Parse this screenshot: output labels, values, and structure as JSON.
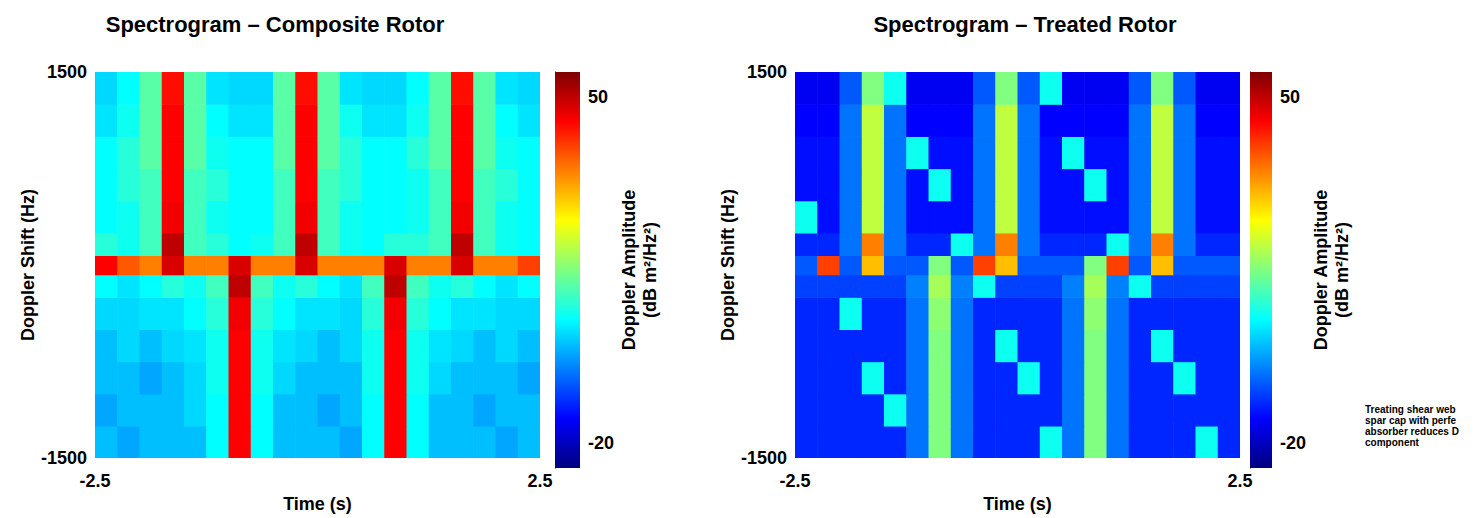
{
  "chart_data": [
    {
      "type": "heatmap",
      "title": "Spectrogram – Composite Rotor",
      "x_label": "Time (s)",
      "y_label": "Doppler Shift (Hz)",
      "xlim": [
        -2.5,
        2.5
      ],
      "xticks": [
        -2.5,
        2.5
      ],
      "ylim": [
        -1500,
        1500
      ],
      "yticks": [
        -1500,
        1500
      ],
      "time_edges": [
        -2.5,
        -2.25,
        -2.0,
        -1.75,
        -1.5,
        -1.25,
        -1.0,
        -0.75,
        -0.5,
        -0.25,
        0.0,
        0.25,
        0.5,
        0.75,
        1.0,
        1.25,
        1.5,
        1.75,
        2.0,
        2.25,
        2.5
      ],
      "doppler_edges": [
        -1500,
        -1250,
        -1000,
        -750,
        -500,
        -250,
        -75,
        75,
        250,
        500,
        750,
        1000,
        1250,
        1500
      ],
      "amplitude": [
        [
          0,
          -2,
          0,
          0,
          0,
          5,
          45,
          5,
          0,
          0,
          0,
          -2,
          5,
          45,
          5,
          0,
          0,
          0,
          -2,
          0
        ],
        [
          -2,
          0,
          0,
          0,
          2,
          5,
          45,
          5,
          0,
          0,
          -2,
          0,
          5,
          45,
          5,
          0,
          0,
          -2,
          0,
          0
        ],
        [
          0,
          0,
          -2,
          0,
          2,
          6,
          45,
          6,
          2,
          0,
          0,
          0,
          6,
          45,
          6,
          2,
          0,
          0,
          0,
          -2
        ],
        [
          0,
          2,
          0,
          2,
          3,
          6,
          45,
          6,
          3,
          2,
          0,
          2,
          6,
          45,
          6,
          3,
          2,
          0,
          2,
          0
        ],
        [
          2,
          2,
          3,
          3,
          5,
          8,
          46,
          8,
          5,
          3,
          3,
          2,
          8,
          46,
          8,
          5,
          3,
          3,
          2,
          2
        ],
        [
          5,
          3,
          5,
          8,
          6,
          10,
          50,
          10,
          6,
          8,
          5,
          3,
          10,
          50,
          10,
          6,
          8,
          5,
          3,
          5
        ],
        [
          45,
          38,
          35,
          48,
          35,
          35,
          48,
          35,
          35,
          48,
          35,
          35,
          35,
          48,
          35,
          35,
          48,
          35,
          35,
          40
        ],
        [
          8,
          6,
          10,
          50,
          10,
          8,
          5,
          6,
          10,
          50,
          10,
          6,
          5,
          8,
          8,
          10,
          50,
          10,
          6,
          5
        ],
        [
          5,
          6,
          10,
          46,
          10,
          6,
          5,
          5,
          10,
          46,
          10,
          6,
          5,
          5,
          6,
          10,
          46,
          10,
          6,
          5
        ],
        [
          5,
          8,
          10,
          45,
          10,
          8,
          5,
          5,
          10,
          45,
          10,
          8,
          5,
          5,
          6,
          10,
          45,
          10,
          8,
          5
        ],
        [
          5,
          8,
          12,
          45,
          12,
          6,
          5,
          5,
          12,
          45,
          12,
          8,
          5,
          5,
          8,
          12,
          45,
          12,
          6,
          5
        ],
        [
          3,
          6,
          12,
          45,
          12,
          5,
          3,
          3,
          12,
          45,
          12,
          6,
          3,
          3,
          6,
          12,
          45,
          12,
          5,
          3
        ],
        [
          2,
          5,
          12,
          44,
          12,
          3,
          2,
          2,
          12,
          44,
          12,
          3,
          2,
          2,
          5,
          12,
          44,
          12,
          3,
          2
        ]
      ],
      "colorbar": {
        "label": "Doppler Amplitude (dB m²/Hz²)",
        "range": [
          -25,
          55
        ],
        "ticks": [
          -20,
          50
        ]
      }
    },
    {
      "type": "heatmap",
      "title": "Spectrogram – Treated Rotor",
      "x_label": "Time (s)",
      "y_label": "Doppler Shift (Hz)",
      "xlim": [
        -2.5,
        2.5
      ],
      "xticks": [
        -2.5,
        2.5
      ],
      "ylim": [
        -1500,
        1500
      ],
      "yticks": [
        -1500,
        1500
      ],
      "time_edges": [
        -2.5,
        -2.25,
        -2.0,
        -1.75,
        -1.5,
        -1.25,
        -1.0,
        -0.75,
        -0.5,
        -0.25,
        0.0,
        0.25,
        0.5,
        0.75,
        1.0,
        1.25,
        1.5,
        1.75,
        2.0,
        2.25,
        2.5
      ],
      "doppler_edges": [
        -1500,
        -1250,
        -1000,
        -750,
        -500,
        -250,
        -75,
        75,
        250,
        500,
        750,
        1000,
        1250,
        1500
      ],
      "amplitude": [
        [
          -12,
          -12,
          -12,
          -12,
          -12,
          -6,
          15,
          -6,
          -12,
          -12,
          -12,
          6,
          -6,
          15,
          -6,
          -12,
          -12,
          -12,
          6,
          -12
        ],
        [
          -12,
          -12,
          -12,
          -12,
          6,
          -6,
          15,
          -6,
          -12,
          -12,
          -12,
          -12,
          -6,
          15,
          -6,
          -12,
          -12,
          -12,
          -12,
          -12
        ],
        [
          -12,
          -12,
          -12,
          6,
          -12,
          -6,
          15,
          -6,
          -12,
          -12,
          6,
          -12,
          -6,
          15,
          -6,
          -12,
          -12,
          6,
          -12,
          -12
        ],
        [
          -12,
          -12,
          -12,
          -12,
          -12,
          -6,
          15,
          -6,
          -12,
          6,
          -12,
          -12,
          -6,
          15,
          -6,
          -12,
          6,
          -12,
          -12,
          -12
        ],
        [
          -12,
          -12,
          6,
          -12,
          -12,
          -6,
          16,
          -6,
          -12,
          -12,
          -12,
          -12,
          -6,
          16,
          -6,
          -12,
          -12,
          -12,
          -12,
          -12
        ],
        [
          -10,
          -10,
          -10,
          -10,
          -10,
          -5,
          18,
          -5,
          6,
          -10,
          -10,
          -10,
          -5,
          18,
          -5,
          6,
          -10,
          -10,
          -10,
          -10
        ],
        [
          -8,
          40,
          -8,
          30,
          -8,
          -8,
          15,
          -8,
          40,
          30,
          -8,
          -8,
          -8,
          15,
          40,
          -8,
          30,
          -8,
          -8,
          -8
        ],
        [
          -12,
          -12,
          -6,
          35,
          -6,
          -12,
          -12,
          6,
          -6,
          35,
          -6,
          -12,
          -12,
          -12,
          6,
          -6,
          35,
          -6,
          -12,
          -12
        ],
        [
          6,
          -14,
          -6,
          20,
          -6,
          -14,
          -14,
          -14,
          -6,
          20,
          -6,
          -14,
          -14,
          -14,
          -14,
          -6,
          20,
          -6,
          -14,
          -14
        ],
        [
          -14,
          -14,
          -6,
          20,
          -6,
          -14,
          6,
          -14,
          -6,
          20,
          -6,
          -14,
          -14,
          6,
          -14,
          -6,
          20,
          -6,
          -14,
          -14
        ],
        [
          -14,
          -14,
          -6,
          20,
          -6,
          6,
          -14,
          -14,
          -6,
          20,
          -6,
          -14,
          6,
          -14,
          -14,
          -6,
          20,
          -6,
          -14,
          -14
        ],
        [
          -15,
          -15,
          -6,
          20,
          -6,
          -15,
          -15,
          -15,
          -6,
          20,
          -6,
          -15,
          -15,
          -15,
          -15,
          -6,
          20,
          -6,
          -15,
          -15
        ],
        [
          -16,
          -16,
          -8,
          15,
          6,
          -16,
          -16,
          -16,
          -8,
          15,
          -8,
          6,
          -16,
          -16,
          -16,
          -8,
          15,
          -8,
          -16,
          -16
        ]
      ],
      "colorbar": {
        "label": "Doppler Amplitude (dB m²/Hz²)",
        "range": [
          -25,
          55
        ],
        "ticks": [
          -20,
          50
        ]
      },
      "annotations": [
        {
          "text": "Treating shear web\nspar cap with perfe\nabsorber reduces D\ncomponent",
          "x": 1.15,
          "y": -1260
        }
      ]
    }
  ]
}
